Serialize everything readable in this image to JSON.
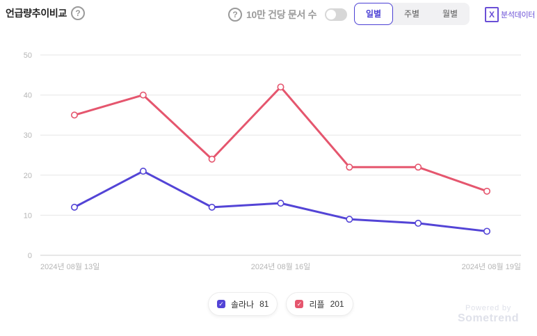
{
  "header": {
    "title": "언급량추이비교",
    "per_label": "10만 건당 문서 수",
    "periods": [
      {
        "label": "일별",
        "active": true
      },
      {
        "label": "주별",
        "active": false
      },
      {
        "label": "월별",
        "active": false
      }
    ],
    "export_label": "분석데이터",
    "help_icon_glyph": "?",
    "excel_icon_glyph": "X"
  },
  "toggle": {
    "on": false
  },
  "watermark": {
    "powered_by": "Powered by",
    "brand": "Sometrend"
  },
  "colors": {
    "series1": "#5344d6",
    "series2": "#e5566e",
    "grid": "#e6e6e6",
    "axis_text": "#b5b5b5"
  },
  "chart_data": {
    "type": "line",
    "x": [
      "2024-08-13",
      "2024-08-14",
      "2024-08-15",
      "2024-08-16",
      "2024-08-17",
      "2024-08-18",
      "2024-08-19"
    ],
    "x_tick_labels": [
      "2024년 08월 13일",
      "2024년 08월 16일",
      "2024년 08월 19일"
    ],
    "x_tick_indices": [
      0,
      3,
      6
    ],
    "y_ticks": [
      0,
      10,
      20,
      30,
      40,
      50
    ],
    "ylim": [
      0,
      50
    ],
    "grid": true,
    "legend_position": "bottom",
    "series": [
      {
        "name": "솔라나",
        "total": "81",
        "color": "#5344d6",
        "values": [
          12,
          21,
          12,
          13,
          9,
          8,
          6
        ]
      },
      {
        "name": "리플",
        "total": "201",
        "color": "#e5566e",
        "values": [
          35,
          40,
          24,
          42,
          22,
          22,
          16
        ]
      }
    ]
  }
}
